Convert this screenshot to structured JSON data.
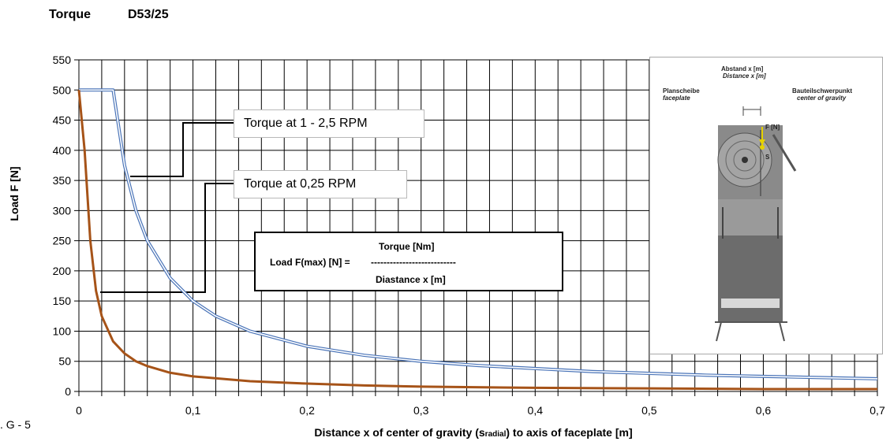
{
  "header": {
    "title": "Torque",
    "model": "D53/25"
  },
  "figure_label": ". G - 5",
  "callouts": {
    "rpm_high": "Torque at 1 - 2,5 RPM",
    "rpm_low": "Torque at 0,25 RPM"
  },
  "formula": {
    "numerator": "Torque [Nm]",
    "lhs": "Load  F(max) [N] =",
    "dashes": "---------------------------",
    "denominator": "Diastance x [m]"
  },
  "photo": {
    "distance_de": "Abstand x [m]",
    "distance_en": "Distance x [m]",
    "faceplate_de": "Planscheibe",
    "faceplate_en": "faceplate",
    "cog_de": "Bauteilschwerpunkt",
    "cog_en": "center of gravity",
    "force_label": "F [N]",
    "s_label": "S"
  },
  "colors": {
    "series_high": "#4a74b8",
    "series_low": "#a65318",
    "grid": "#000000"
  },
  "chart_data": {
    "type": "line",
    "xlabel": "Distance x of center of gravity (sradial) to axis of faceplate [m]",
    "xlabel_main": "Distance x of center of gravity (s",
    "xlabel_sub": "radial",
    "xlabel_tail": ") to axis of faceplate [m]",
    "ylabel": "Load F [N]",
    "xlim": [
      0,
      0.7
    ],
    "ylim": [
      0,
      550
    ],
    "x_ticks": [
      "0",
      "0,1",
      "0,2",
      "0,3",
      "0,4",
      "0,5",
      "0,6",
      "0,7"
    ],
    "y_ticks": [
      "0",
      "50",
      "100",
      "150",
      "200",
      "250",
      "300",
      "350",
      "400",
      "450",
      "500",
      "550"
    ],
    "grid": true,
    "series": [
      {
        "name": "Torque at 1 - 2,5 RPM",
        "x": [
          0,
          0.01,
          0.02,
          0.03,
          0.04,
          0.05,
          0.06,
          0.08,
          0.1,
          0.12,
          0.15,
          0.2,
          0.25,
          0.3,
          0.35,
          0.4,
          0.45,
          0.5,
          0.55,
          0.6,
          0.65,
          0.7
        ],
        "y": [
          500,
          500,
          500,
          500,
          375,
          300,
          250,
          188,
          150,
          125,
          100,
          75,
          60,
          50,
          43,
          38,
          33,
          30,
          27,
          25,
          23,
          21
        ]
      },
      {
        "name": "Torque at 0,25 RPM",
        "x": [
          0,
          0.005,
          0.01,
          0.015,
          0.02,
          0.03,
          0.04,
          0.05,
          0.06,
          0.08,
          0.1,
          0.15,
          0.2,
          0.25,
          0.3,
          0.4,
          0.5,
          0.6,
          0.7
        ],
        "y": [
          500,
          400,
          250,
          167,
          125,
          83,
          63,
          50,
          42,
          31,
          25,
          17,
          13,
          10,
          8,
          6,
          5,
          4,
          4
        ]
      }
    ]
  }
}
